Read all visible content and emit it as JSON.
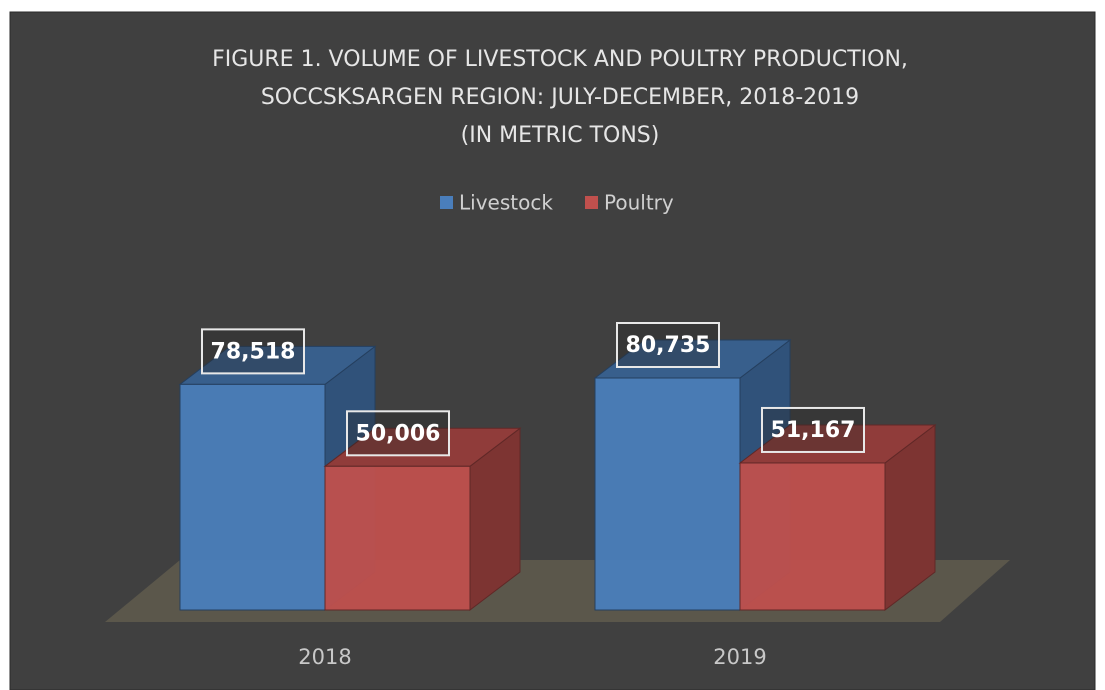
{
  "chart_data": {
    "type": "bar3d",
    "title": [
      "FIGURE 1.  VOLUME OF LIVESTOCK AND POULTRY PRODUCTION,",
      "SOCCSKSARGEN REGION: JULY-DECEMBER, 2018-2019",
      "(IN METRIC TONS)"
    ],
    "categories": [
      "2018",
      "2019"
    ],
    "series": [
      {
        "name": "Livestock",
        "color": "#4a7ebb",
        "values": [
          78518,
          80735
        ],
        "value_labels": [
          "78,518",
          "80,735"
        ]
      },
      {
        "name": "Poultry",
        "color": "#c0504d",
        "values": [
          50006,
          51167
        ],
        "value_labels": [
          "50,006",
          "51,167"
        ]
      }
    ],
    "legend": "top"
  }
}
